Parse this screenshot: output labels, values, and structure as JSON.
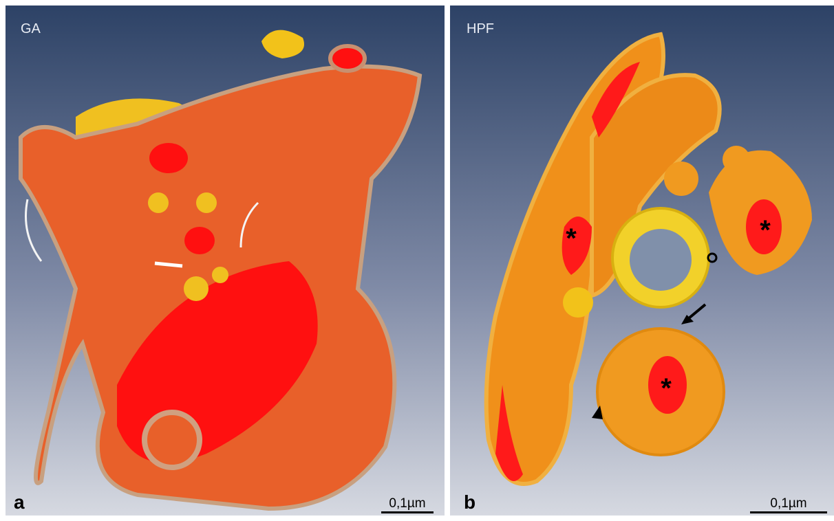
{
  "panels": [
    {
      "label": "a",
      "condition": "GA",
      "scale_bar": "0,1µm"
    },
    {
      "label": "b",
      "condition": "HPF",
      "scale_bar": "0,1µm",
      "markers": [
        "*",
        "*",
        "*"
      ]
    }
  ]
}
